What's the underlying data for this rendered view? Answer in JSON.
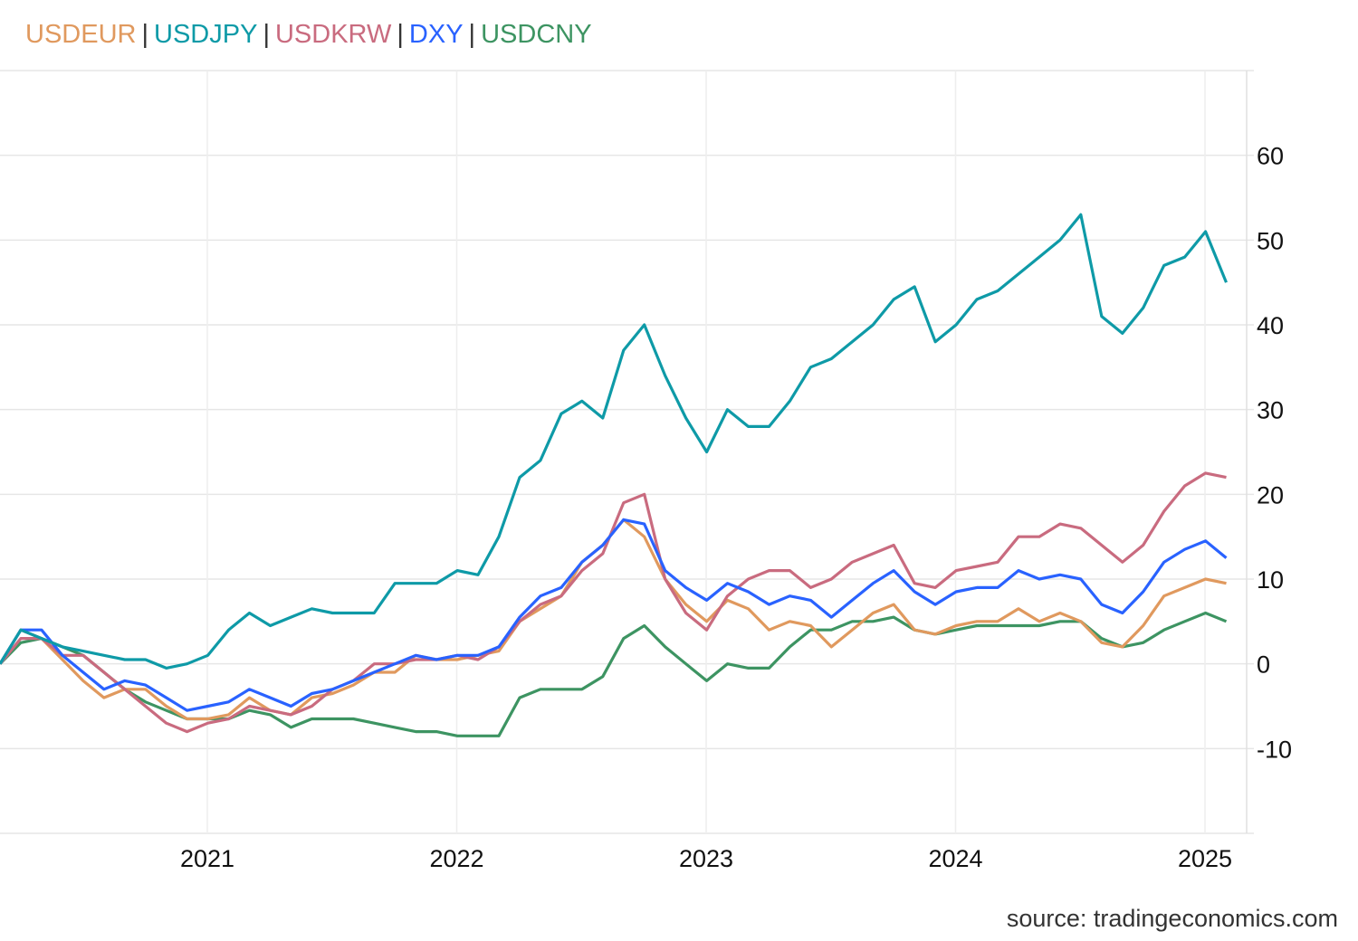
{
  "chart_data": {
    "type": "line",
    "title": "",
    "xlabel": "",
    "ylabel": "",
    "ylim": [
      -20,
      70
    ],
    "xlim": [
      "2020-03",
      "2025-02"
    ],
    "grid": true,
    "legend_placement": "top-left",
    "y_ticks": [
      "-10",
      "0",
      "10",
      "20",
      "30",
      "40",
      "50",
      "60"
    ],
    "x_ticks": [
      "2021",
      "2022",
      "2023",
      "2024",
      "2025"
    ],
    "x": [
      "2020-03",
      "2020-04",
      "2020-05",
      "2020-06",
      "2020-07",
      "2020-08",
      "2020-09",
      "2020-10",
      "2020-11",
      "2020-12",
      "2021-01",
      "2021-02",
      "2021-03",
      "2021-04",
      "2021-05",
      "2021-06",
      "2021-07",
      "2021-08",
      "2021-09",
      "2021-10",
      "2021-11",
      "2021-12",
      "2022-01",
      "2022-02",
      "2022-03",
      "2022-04",
      "2022-05",
      "2022-06",
      "2022-07",
      "2022-08",
      "2022-09",
      "2022-10",
      "2022-11",
      "2022-12",
      "2023-01",
      "2023-02",
      "2023-03",
      "2023-04",
      "2023-05",
      "2023-06",
      "2023-07",
      "2023-08",
      "2023-09",
      "2023-10",
      "2023-11",
      "2023-12",
      "2024-01",
      "2024-02",
      "2024-03",
      "2024-04",
      "2024-05",
      "2024-06",
      "2024-07",
      "2024-08",
      "2024-09",
      "2024-10",
      "2024-11",
      "2024-12",
      "2025-01",
      "2025-02"
    ],
    "series": [
      {
        "name": "USDEUR",
        "color": "#e0995e",
        "values": [
          0,
          4,
          3,
          0.5,
          -2,
          -4,
          -3,
          -3,
          -5,
          -6.5,
          -6.5,
          -6,
          -4,
          -5.5,
          -6,
          -4,
          -3.5,
          -2.5,
          -1,
          -1,
          1,
          0.5,
          0.5,
          1,
          1.5,
          5,
          6.5,
          8,
          12,
          14,
          17,
          15,
          10,
          7,
          5,
          7.5,
          6.5,
          4,
          5,
          4.5,
          2,
          4,
          6,
          7,
          4,
          3.5,
          4.5,
          5,
          5,
          6.5,
          5,
          6,
          5,
          2.5,
          2,
          4.5,
          8,
          9,
          10,
          9.5
        ]
      },
      {
        "name": "USDJPY",
        "color": "#0e9aa7",
        "values": [
          0,
          4,
          3,
          2,
          1.5,
          1,
          0.5,
          0.5,
          -0.5,
          0,
          1,
          4,
          6,
          4.5,
          5.5,
          6.5,
          6,
          6,
          6,
          9.5,
          9.5,
          9.5,
          11,
          10.5,
          15,
          22,
          24,
          29.5,
          31,
          29,
          37,
          40,
          34,
          29,
          25,
          30,
          28,
          28,
          31,
          35,
          36,
          38,
          40,
          43,
          44.5,
          38,
          40,
          43,
          44,
          46,
          48,
          50,
          53,
          41,
          39,
          42,
          47,
          48,
          51,
          45
        ]
      },
      {
        "name": "USDKRW",
        "color": "#c96b7f",
        "values": [
          0,
          3,
          3,
          1,
          1,
          -1,
          -3,
          -5,
          -7,
          -8,
          -7,
          -6.5,
          -5,
          -5.5,
          -6,
          -5,
          -3,
          -2,
          0,
          0,
          0.5,
          0.5,
          1,
          0.5,
          2,
          5,
          7,
          8,
          11,
          13,
          19,
          20,
          10,
          6,
          4,
          8,
          10,
          11,
          11,
          9,
          10,
          12,
          13,
          14,
          9.5,
          9,
          11,
          11.5,
          12,
          15,
          15,
          16.5,
          16,
          14,
          12,
          14,
          18,
          21,
          22.5,
          22
        ]
      },
      {
        "name": "DXY",
        "color": "#2962ff",
        "values": [
          0,
          4,
          4,
          1,
          -1,
          -3,
          -2,
          -2.5,
          -4,
          -5.5,
          -5,
          -4.5,
          -3,
          -4,
          -5,
          -3.5,
          -3,
          -2,
          -1,
          0,
          1,
          0.5,
          1,
          1,
          2,
          5.5,
          8,
          9,
          12,
          14,
          17,
          16.5,
          11,
          9,
          7.5,
          9.5,
          8.5,
          7,
          8,
          7.5,
          5.5,
          7.5,
          9.5,
          11,
          8.5,
          7,
          8.5,
          9,
          9,
          11,
          10,
          10.5,
          10,
          7,
          6,
          8.5,
          12,
          13.5,
          14.5,
          12.5
        ]
      },
      {
        "name": "USDCNY",
        "color": "#3d9462",
        "values": [
          0,
          2.5,
          3,
          2,
          1,
          -1,
          -3,
          -4.5,
          -5.5,
          -6.5,
          -6.5,
          -6.5,
          -5.5,
          -6,
          -7.5,
          -6.5,
          -6.5,
          -6.5,
          -7,
          -7.5,
          -8,
          -8,
          -8.5,
          -8.5,
          -8.5,
          -4,
          -3,
          -3,
          -3,
          -1.5,
          3,
          4.5,
          2,
          0,
          -2,
          0,
          -0.5,
          -0.5,
          2,
          4,
          4,
          5,
          5,
          5.5,
          4,
          3.5,
          4,
          4.5,
          4.5,
          4.5,
          4.5,
          5,
          5,
          3,
          2,
          2.5,
          4,
          5,
          6,
          5
        ]
      }
    ]
  },
  "legend_separator": "|",
  "source": "source: tradingeconomics.com"
}
